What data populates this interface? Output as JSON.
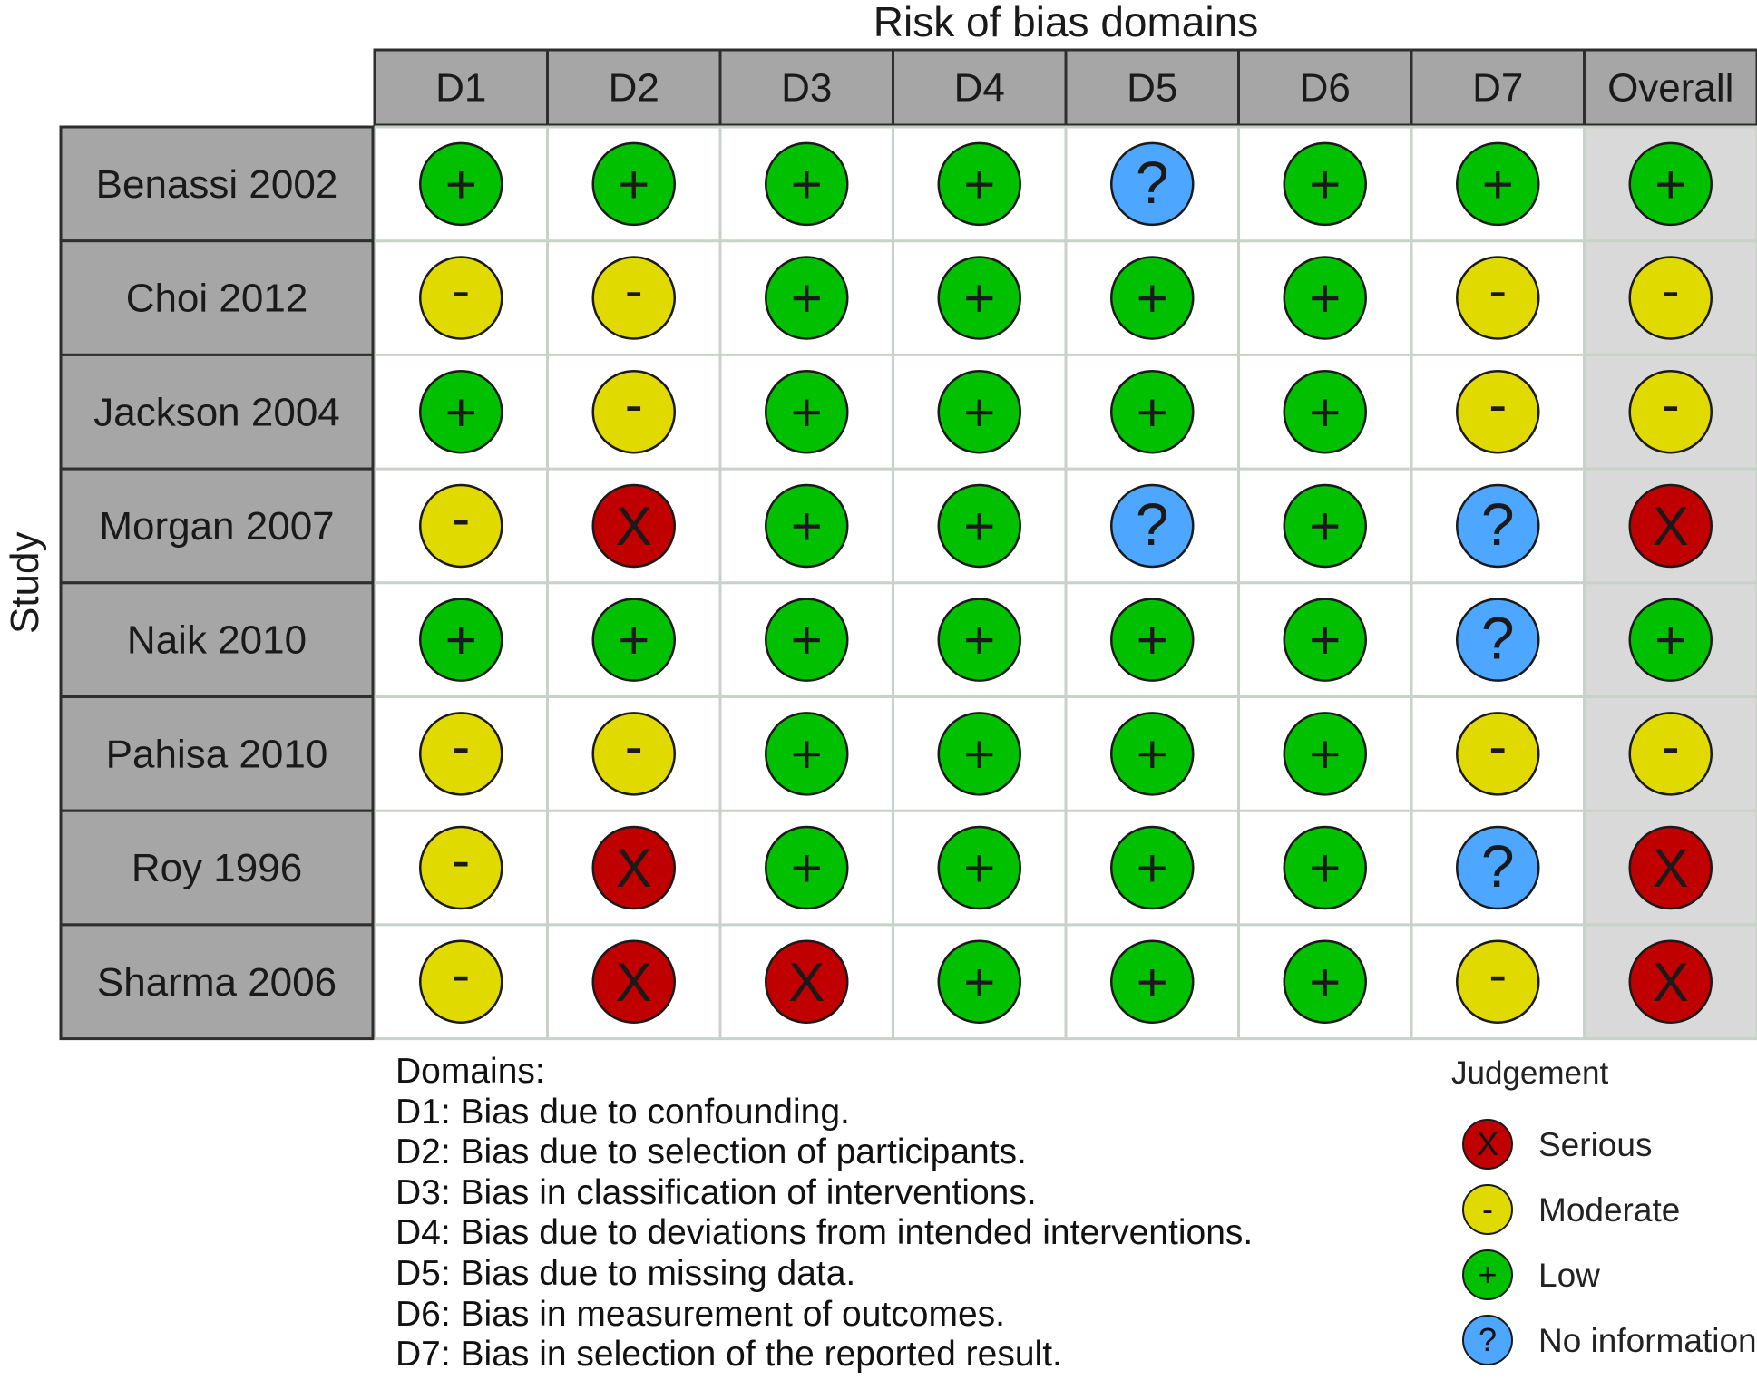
{
  "chart_data": {
    "type": "table",
    "title": "Risk of bias domains",
    "y_axis_label": "Study",
    "columns": [
      "D1",
      "D2",
      "D3",
      "D4",
      "D5",
      "D6",
      "D7",
      "Overall"
    ],
    "studies": [
      {
        "name": "Benassi 2002",
        "judgements": [
          "Low",
          "Low",
          "Low",
          "Low",
          "No information",
          "Low",
          "Low",
          "Low"
        ]
      },
      {
        "name": "Choi 2012",
        "judgements": [
          "Moderate",
          "Moderate",
          "Low",
          "Low",
          "Low",
          "Low",
          "Moderate",
          "Moderate"
        ]
      },
      {
        "name": "Jackson 2004",
        "judgements": [
          "Low",
          "Moderate",
          "Low",
          "Low",
          "Low",
          "Low",
          "Moderate",
          "Moderate"
        ]
      },
      {
        "name": "Morgan 2007",
        "judgements": [
          "Moderate",
          "Serious",
          "Low",
          "Low",
          "No information",
          "Low",
          "No information",
          "Serious"
        ]
      },
      {
        "name": "Naik 2010",
        "judgements": [
          "Low",
          "Low",
          "Low",
          "Low",
          "Low",
          "Low",
          "No information",
          "Low"
        ]
      },
      {
        "name": "Pahisa 2010",
        "judgements": [
          "Moderate",
          "Moderate",
          "Low",
          "Low",
          "Low",
          "Low",
          "Moderate",
          "Moderate"
        ]
      },
      {
        "name": "Roy 1996",
        "judgements": [
          "Moderate",
          "Serious",
          "Low",
          "Low",
          "Low",
          "Low",
          "No information",
          "Serious"
        ]
      },
      {
        "name": "Sharma 2006",
        "judgements": [
          "Moderate",
          "Serious",
          "Serious",
          "Low",
          "Low",
          "Low",
          "Moderate",
          "Serious"
        ]
      }
    ],
    "domains_heading": "Domains:",
    "domain_descriptions": [
      "D1: Bias due to confounding.",
      "D2: Bias due to selection of participants.",
      "D3: Bias in classification of interventions.",
      "D4: Bias due to deviations from intended interventions.",
      "D5: Bias due to missing data.",
      "D6: Bias in measurement of outcomes.",
      "D7: Bias in selection of the reported result."
    ],
    "legend": {
      "title": "Judgement",
      "items": [
        {
          "label": "Serious",
          "symbol": "X",
          "color": "#c00000"
        },
        {
          "label": "Moderate",
          "symbol": "-",
          "color": "#e0da00"
        },
        {
          "label": "Low",
          "symbol": "+",
          "color": "#00c000"
        },
        {
          "label": "No information",
          "symbol": "?",
          "color": "#4da6ff"
        }
      ]
    }
  },
  "colors": {
    "header_fill": "#a6a6a6",
    "overall_column_fill": "#d9d9d9",
    "cell_fill": "#ffffff",
    "border": "#2e2e2e"
  }
}
